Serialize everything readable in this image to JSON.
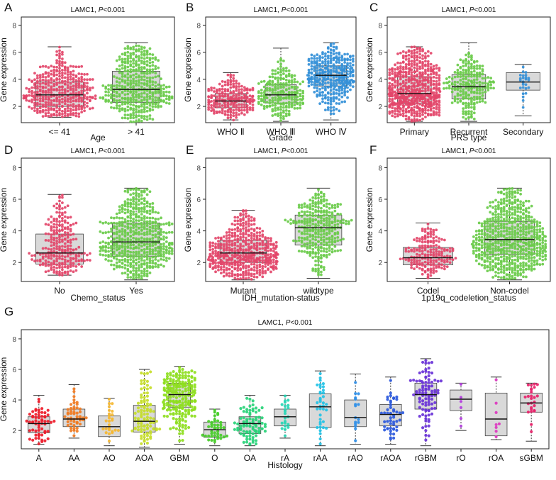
{
  "figure": {
    "ylabel": "Gene expression",
    "title_gene": "LAMC1,",
    "title_p": "P",
    "title_pval": "<0.001"
  },
  "chart_data": [
    {
      "panel": "A",
      "type": "beeswarm-box",
      "title": "LAMC1, P<0.001",
      "xlabel": "Age",
      "ylabel": "Gene expression",
      "ylim": [
        0.8,
        8.6
      ],
      "yticks": [
        2,
        4,
        6,
        8
      ],
      "groups": [
        {
          "name": "<= 41",
          "color": "#e3466a",
          "n": 400,
          "q1": 2.0,
          "median": 2.85,
          "q3": 3.8,
          "whisker_low": 1.2,
          "whisker_high": 6.4
        },
        {
          "name": "> 41",
          "color": "#6acb4a",
          "n": 430,
          "q1": 2.3,
          "median": 3.25,
          "q3": 4.6,
          "whisker_low": 0.8,
          "whisker_high": 6.7
        }
      ]
    },
    {
      "panel": "B",
      "type": "beeswarm-box",
      "title": "LAMC1, P<0.001",
      "xlabel": "Grade",
      "ylabel": "Gene expression",
      "ylim": [
        0.8,
        8.6
      ],
      "yticks": [
        2,
        4,
        6,
        8
      ],
      "groups": [
        {
          "name": "WHO Ⅱ",
          "color": "#e3466a",
          "n": 230,
          "q1": 1.9,
          "median": 2.4,
          "q3": 2.95,
          "whisker_low": 1.0,
          "whisker_high": 4.5
        },
        {
          "name": "WHO Ⅲ",
          "color": "#6acb4a",
          "n": 240,
          "q1": 2.25,
          "median": 2.85,
          "q3": 3.6,
          "whisker_low": 0.9,
          "whisker_high": 6.3
        },
        {
          "name": "WHO Ⅳ",
          "color": "#3490d8",
          "n": 360,
          "q1": 3.5,
          "median": 4.3,
          "q3": 5.0,
          "whisker_low": 1.0,
          "whisker_high": 6.7
        }
      ]
    },
    {
      "panel": "C",
      "type": "beeswarm-box",
      "title": "LAMC1, P<0.001",
      "xlabel": "PRS type",
      "ylabel": "Gene expression",
      "ylim": [
        0.8,
        8.6
      ],
      "yticks": [
        2,
        4,
        6,
        8
      ],
      "groups": [
        {
          "name": "Primary",
          "color": "#e3466a",
          "n": 620,
          "q1": 2.2,
          "median": 2.95,
          "q3": 4.2,
          "whisker_low": 0.9,
          "whisker_high": 6.4
        },
        {
          "name": "Recurrent",
          "color": "#6acb4a",
          "n": 230,
          "q1": 2.55,
          "median": 3.45,
          "q3": 4.35,
          "whisker_low": 0.9,
          "whisker_high": 6.7
        },
        {
          "name": "Secondary",
          "color": "#3490d8",
          "n": 26,
          "q1": 3.2,
          "median": 3.8,
          "q3": 4.5,
          "whisker_low": 1.3,
          "whisker_high": 5.1
        }
      ]
    },
    {
      "panel": "D",
      "type": "beeswarm-box",
      "title": "LAMC1, P<0.001",
      "xlabel": "Chemo_status",
      "ylabel": "Gene expression",
      "ylim": [
        0.8,
        8.6
      ],
      "yticks": [
        2,
        4,
        6,
        8
      ],
      "groups": [
        {
          "name": "No",
          "color": "#e3466a",
          "n": 260,
          "q1": 1.9,
          "median": 2.6,
          "q3": 3.8,
          "whisker_low": 1.2,
          "whisker_high": 6.3
        },
        {
          "name": "Yes",
          "color": "#6acb4a",
          "n": 560,
          "q1": 2.4,
          "median": 3.3,
          "q3": 4.5,
          "whisker_low": 0.9,
          "whisker_high": 6.7
        }
      ]
    },
    {
      "panel": "E",
      "type": "beeswarm-box",
      "title": "LAMC1, P<0.001",
      "xlabel": "IDH_mutation-status",
      "ylabel": "Gene expression",
      "ylim": [
        0.8,
        8.6
      ],
      "yticks": [
        2,
        4,
        6,
        8
      ],
      "groups": [
        {
          "name": "Mutant",
          "color": "#e3466a",
          "n": 520,
          "q1": 2.0,
          "median": 2.6,
          "q3": 3.4,
          "whisker_low": 0.9,
          "whisker_high": 5.3
        },
        {
          "name": "wildtype",
          "color": "#6acb4a",
          "n": 330,
          "q1": 3.1,
          "median": 4.2,
          "q3": 5.0,
          "whisker_low": 1.0,
          "whisker_high": 6.7
        }
      ]
    },
    {
      "panel": "F",
      "type": "beeswarm-box",
      "title": "LAMC1, P<0.001",
      "xlabel": "1p19q_codeletion_status",
      "ylabel": "Gene expression",
      "ylim": [
        0.8,
        8.6
      ],
      "yticks": [
        2,
        4,
        6,
        8
      ],
      "groups": [
        {
          "name": "Codel",
          "color": "#e3466a",
          "n": 190,
          "q1": 1.85,
          "median": 2.3,
          "q3": 2.95,
          "whisker_low": 1.0,
          "whisker_high": 4.5
        },
        {
          "name": "Non-codel",
          "color": "#6acb4a",
          "n": 650,
          "q1": 2.5,
          "median": 3.45,
          "q3": 4.6,
          "whisker_low": 0.9,
          "whisker_high": 6.7
        }
      ]
    },
    {
      "panel": "G",
      "type": "beeswarm-box",
      "title": "LAMC1, P<0.001",
      "xlabel": "Histology",
      "ylabel": "Gene expression",
      "ylim": [
        0.8,
        8.6
      ],
      "yticks": [
        2,
        4,
        6,
        8
      ],
      "groups": [
        {
          "name": "A",
          "color": "#ee1c2a",
          "n": 60,
          "q1": 1.85,
          "median": 2.45,
          "q3": 2.9,
          "whisker_low": 1.1,
          "whisker_high": 4.3
        },
        {
          "name": "AA",
          "color": "#f07b22",
          "n": 50,
          "q1": 2.25,
          "median": 2.75,
          "q3": 3.4,
          "whisker_low": 1.5,
          "whisker_high": 5.0
        },
        {
          "name": "AO",
          "color": "#f5b730",
          "n": 26,
          "q1": 1.6,
          "median": 2.25,
          "q3": 2.95,
          "whisker_low": 1.0,
          "whisker_high": 4.1
        },
        {
          "name": "AOA",
          "color": "#c5dd2a",
          "n": 100,
          "q1": 1.9,
          "median": 2.6,
          "q3": 3.65,
          "whisker_low": 0.9,
          "whisker_high": 6.0
        },
        {
          "name": "GBM",
          "color": "#8ede20",
          "n": 230,
          "q1": 3.5,
          "median": 4.35,
          "q3": 5.1,
          "whisker_low": 1.1,
          "whisker_high": 6.2
        },
        {
          "name": "O",
          "color": "#46cd28",
          "n": 42,
          "q1": 1.55,
          "median": 2.05,
          "q3": 2.55,
          "whisker_low": 1.0,
          "whisker_high": 3.4
        },
        {
          "name": "OA",
          "color": "#28d378",
          "n": 90,
          "q1": 1.8,
          "median": 2.45,
          "q3": 2.9,
          "whisker_low": 1.0,
          "whisker_high": 4.3
        },
        {
          "name": "rA",
          "color": "#28d6b5",
          "n": 22,
          "q1": 2.3,
          "median": 2.9,
          "q3": 3.4,
          "whisker_low": 1.5,
          "whisker_high": 4.3
        },
        {
          "name": "rAA",
          "color": "#22c2e6",
          "n": 38,
          "q1": 2.2,
          "median": 3.55,
          "q3": 4.4,
          "whisker_low": 1.0,
          "whisker_high": 5.9
        },
        {
          "name": "rAO",
          "color": "#2f8fe8",
          "n": 16,
          "q1": 2.25,
          "median": 2.85,
          "q3": 4.0,
          "whisker_low": 1.1,
          "whisker_high": 5.7
        },
        {
          "name": "rAOA",
          "color": "#2b59dd",
          "n": 50,
          "q1": 2.3,
          "median": 3.05,
          "q3": 3.7,
          "whisker_low": 1.1,
          "whisker_high": 5.5
        },
        {
          "name": "rGBM",
          "color": "#6a33d8",
          "n": 95,
          "q1": 3.4,
          "median": 4.35,
          "q3": 5.1,
          "whisker_low": 1.0,
          "whisker_high": 6.7
        },
        {
          "name": "rO",
          "color": "#b33fdd",
          "n": 6,
          "q1": 3.3,
          "median": 4.05,
          "q3": 4.65,
          "whisker_low": 2.0,
          "whisker_high": 5.1
        },
        {
          "name": "rOA",
          "color": "#dd36c0",
          "n": 8,
          "q1": 1.65,
          "median": 2.75,
          "q3": 4.45,
          "whisker_low": 1.4,
          "whisker_high": 5.5
        },
        {
          "name": "sGBM",
          "color": "#e8226a",
          "n": 26,
          "q1": 3.2,
          "median": 3.8,
          "q3": 4.45,
          "whisker_low": 1.3,
          "whisker_high": 5.1
        }
      ]
    }
  ]
}
